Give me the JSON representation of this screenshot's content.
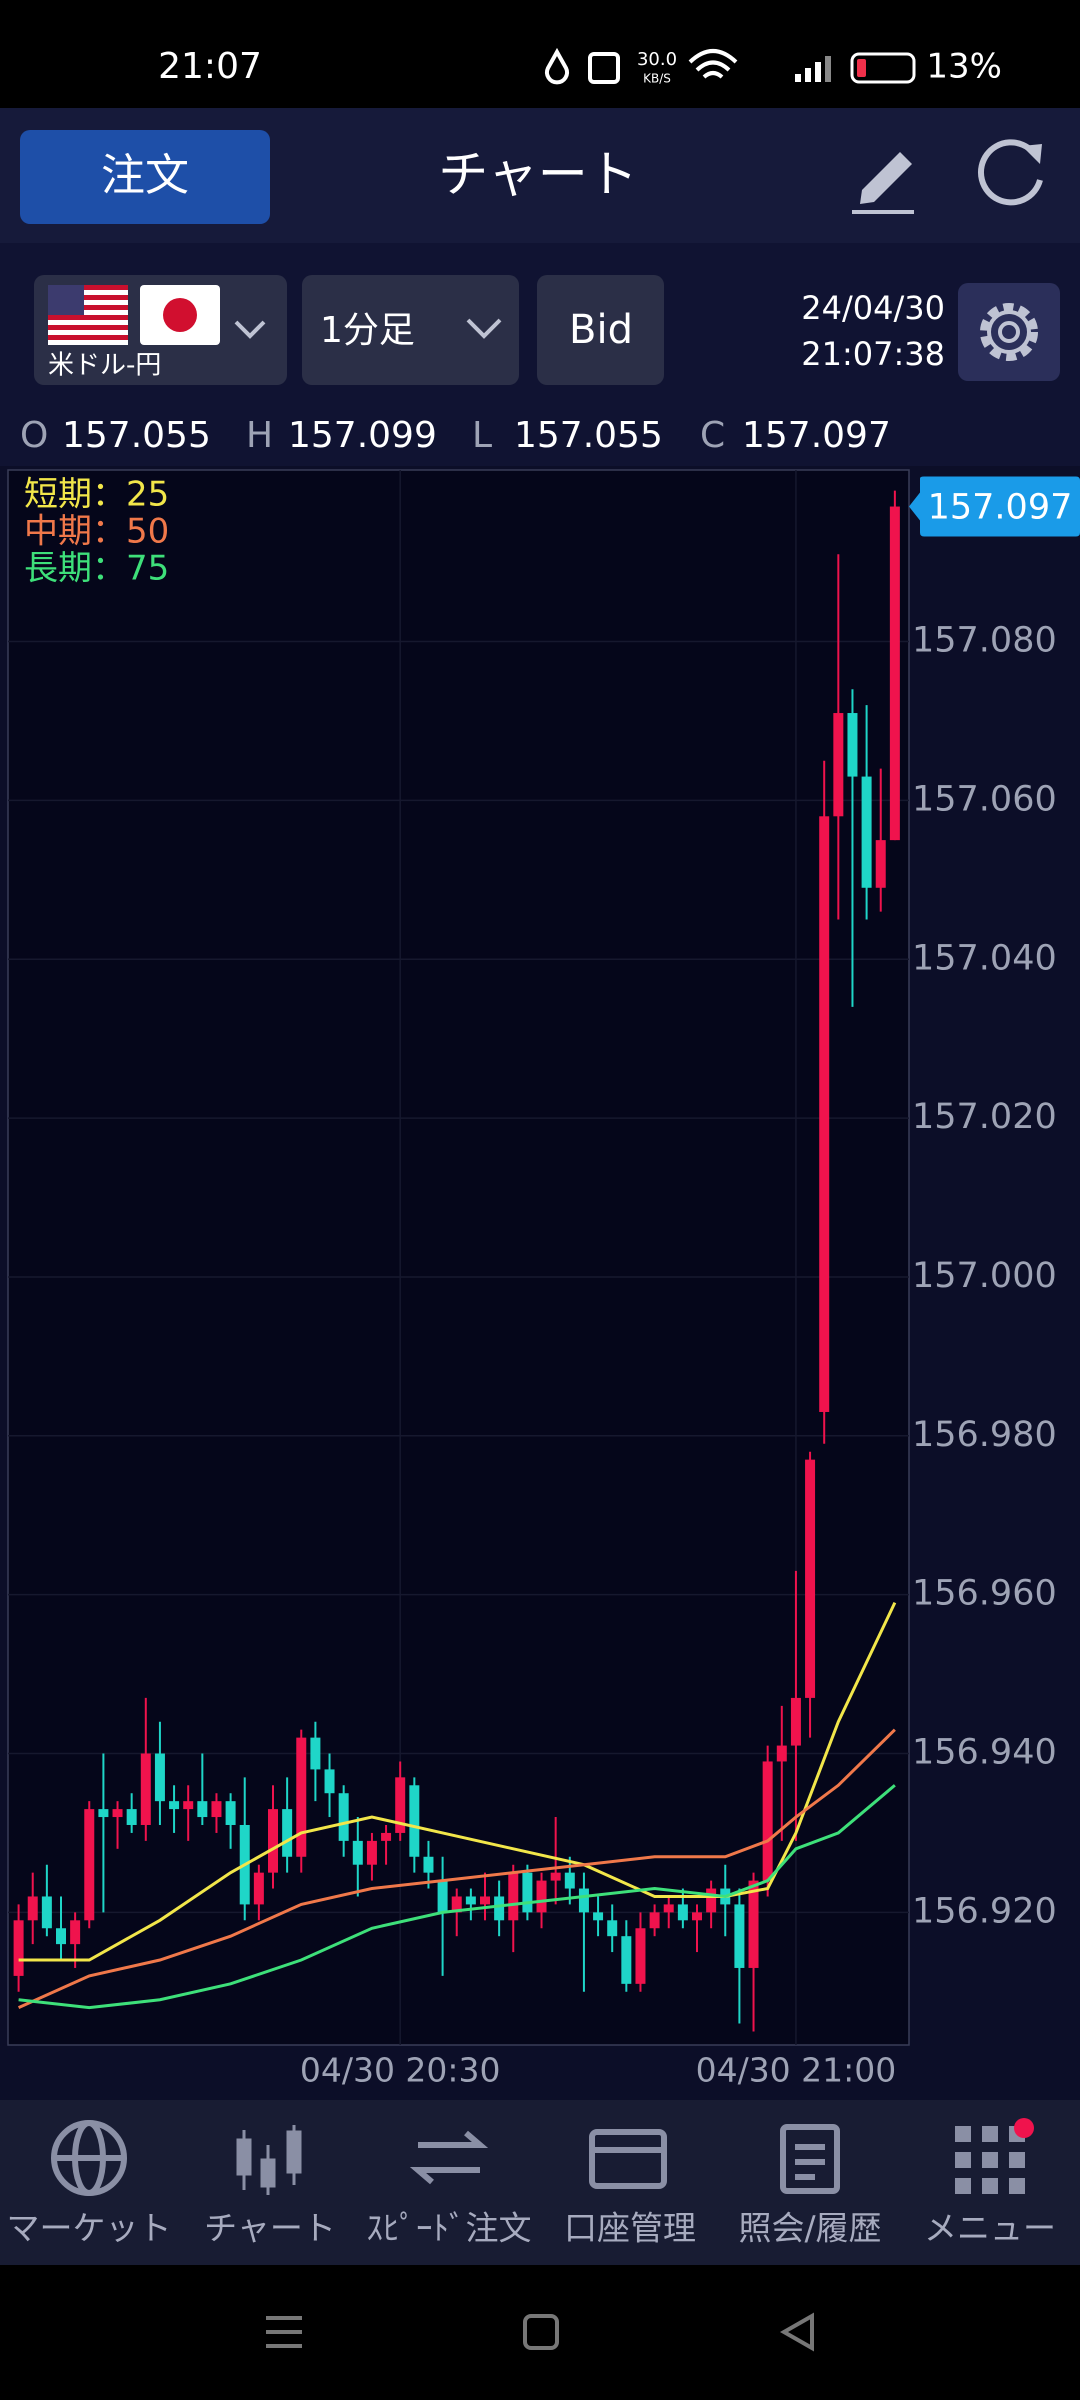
{
  "status_bar": {
    "time": "21:07",
    "net_speed": "30.0",
    "net_unit": "KB/S",
    "battery": "13%"
  },
  "header": {
    "order_button": "注文",
    "title": "チャート"
  },
  "toolbar": {
    "pair": "米ドル-円",
    "timeframe": "1分足",
    "price_type": "Bid",
    "date": "24/04/30",
    "time": "21:07:38"
  },
  "ohlc": [
    {
      "label": "O",
      "value": "157.055"
    },
    {
      "label": "H",
      "value": "157.099"
    },
    {
      "label": "L",
      "value": "157.055"
    },
    {
      "label": "C",
      "value": "157.097"
    }
  ],
  "chart": {
    "type": "candlestick",
    "up_color": "#f0134d",
    "down_color": "#1fd6c8",
    "xlim": [
      -0.75,
      63
    ],
    "xticks": [
      {
        "value": 27,
        "label": "04/30 20:30"
      },
      {
        "value": 55,
        "label": "04/30 21:00"
      }
    ],
    "ylim": [
      156.9033,
      157.1016
    ],
    "yticks": [
      {
        "value": 156.92,
        "label": "156.920"
      },
      {
        "value": 156.94,
        "label": "156.940"
      },
      {
        "value": 156.96,
        "label": "156.960"
      },
      {
        "value": 156.98,
        "label": "156.980"
      },
      {
        "value": 157,
        "label": "157.000"
      },
      {
        "value": 157.02,
        "label": "157.020"
      },
      {
        "value": 157.04,
        "label": "157.040"
      },
      {
        "value": 157.06,
        "label": "157.060"
      },
      {
        "value": 157.08,
        "label": "157.080"
      }
    ],
    "grid": true,
    "last_price": {
      "value": 157.097,
      "label": "157.097"
    },
    "candles": [
      [
        156.912,
        156.921,
        156.91,
        156.919
      ],
      [
        156.919,
        156.925,
        156.916,
        156.922
      ],
      [
        156.922,
        156.926,
        156.917,
        156.918
      ],
      [
        156.918,
        156.922,
        156.914,
        156.916
      ],
      [
        156.916,
        156.92,
        156.913,
        156.919
      ],
      [
        156.919,
        156.934,
        156.918,
        156.933
      ],
      [
        156.933,
        156.94,
        156.92,
        156.932
      ],
      [
        156.932,
        156.934,
        156.928,
        156.933
      ],
      [
        156.933,
        156.935,
        156.93,
        156.931
      ],
      [
        156.931,
        156.947,
        156.929,
        156.94
      ],
      [
        156.94,
        156.944,
        156.931,
        156.934
      ],
      [
        156.934,
        156.936,
        156.93,
        156.933
      ],
      [
        156.933,
        156.936,
        156.929,
        156.934
      ],
      [
        156.934,
        156.94,
        156.931,
        156.932
      ],
      [
        156.932,
        156.935,
        156.93,
        156.934
      ],
      [
        156.934,
        156.935,
        156.928,
        156.931
      ],
      [
        156.931,
        156.937,
        156.919,
        156.921
      ],
      [
        156.921,
        156.926,
        156.919,
        156.925
      ],
      [
        156.925,
        156.936,
        156.923,
        156.933
      ],
      [
        156.933,
        156.937,
        156.925,
        156.927
      ],
      [
        156.927,
        156.943,
        156.925,
        156.942
      ],
      [
        156.942,
        156.944,
        156.934,
        156.938
      ],
      [
        156.938,
        156.94,
        156.932,
        156.935
      ],
      [
        156.935,
        156.936,
        156.927,
        156.929
      ],
      [
        156.929,
        156.932,
        156.922,
        156.926
      ],
      [
        156.926,
        156.93,
        156.924,
        156.929
      ],
      [
        156.929,
        156.931,
        156.926,
        156.93
      ],
      [
        156.93,
        156.939,
        156.929,
        156.937
      ],
      [
        156.936,
        156.937,
        156.925,
        156.927
      ],
      [
        156.927,
        156.929,
        156.923,
        156.925
      ],
      [
        156.924,
        156.927,
        156.912,
        156.92
      ],
      [
        156.92,
        156.923,
        156.917,
        156.922
      ],
      [
        156.922,
        156.923,
        156.919,
        156.921
      ],
      [
        156.921,
        156.925,
        156.919,
        156.922
      ],
      [
        156.922,
        156.924,
        156.917,
        156.919
      ],
      [
        156.919,
        156.926,
        156.915,
        156.925
      ],
      [
        156.925,
        156.926,
        156.919,
        156.92
      ],
      [
        156.92,
        156.925,
        156.918,
        156.924
      ],
      [
        156.924,
        156.932,
        156.921,
        156.925
      ],
      [
        156.925,
        156.927,
        156.921,
        156.923
      ],
      [
        156.923,
        156.925,
        156.91,
        156.92
      ],
      [
        156.92,
        156.922,
        156.917,
        156.919
      ],
      [
        156.919,
        156.921,
        156.915,
        156.917
      ],
      [
        156.917,
        156.919,
        156.91,
        156.911
      ],
      [
        156.911,
        156.92,
        156.91,
        156.918
      ],
      [
        156.918,
        156.921,
        156.917,
        156.92
      ],
      [
        156.92,
        156.922,
        156.918,
        156.921
      ],
      [
        156.921,
        156.923,
        156.918,
        156.919
      ],
      [
        156.919,
        156.921,
        156.915,
        156.92
      ],
      [
        156.92,
        156.924,
        156.918,
        156.923
      ],
      [
        156.923,
        156.926,
        156.917,
        156.921
      ],
      [
        156.921,
        156.923,
        156.906,
        156.913
      ],
      [
        156.913,
        156.925,
        156.905,
        156.924
      ],
      [
        156.924,
        156.941,
        156.922,
        156.939
      ],
      [
        156.939,
        156.946,
        156.929,
        156.941
      ],
      [
        156.941,
        156.963,
        156.929,
        156.947
      ],
      [
        156.947,
        156.978,
        156.942,
        156.977
      ],
      [
        156.983,
        157.065,
        156.979,
        157.058
      ],
      [
        157.058,
        157.091,
        157.045,
        157.071
      ],
      [
        157.071,
        157.074,
        157.034,
        157.063
      ],
      [
        157.063,
        157.072,
        157.045,
        157.049
      ],
      [
        157.049,
        157.064,
        157.046,
        157.055
      ],
      [
        157.055,
        157.099,
        157.055,
        157.097
      ]
    ],
    "series": [
      {
        "name": "短期：25",
        "color": "#f2e64a",
        "x": [
          0,
          5,
          10,
          15,
          20,
          25,
          30,
          35,
          40,
          45,
          50,
          53,
          55,
          58,
          62
        ],
        "values": [
          156.914,
          156.914,
          156.919,
          156.925,
          156.93,
          156.932,
          156.93,
          156.928,
          156.926,
          156.922,
          156.922,
          156.923,
          156.93,
          156.944,
          156.959
        ]
      },
      {
        "name": "中期：50",
        "color": "#f0784a",
        "x": [
          0,
          5,
          10,
          15,
          20,
          25,
          30,
          35,
          40,
          45,
          50,
          53,
          55,
          58,
          62
        ],
        "values": [
          156.908,
          156.912,
          156.914,
          156.917,
          156.921,
          156.923,
          156.924,
          156.925,
          156.926,
          156.927,
          156.927,
          156.929,
          156.932,
          156.936,
          156.943
        ]
      },
      {
        "name": "長期：75",
        "color": "#3ee07a",
        "x": [
          0,
          5,
          10,
          15,
          20,
          25,
          30,
          35,
          40,
          45,
          50,
          53,
          55,
          58,
          62
        ],
        "values": [
          156.909,
          156.908,
          156.909,
          156.911,
          156.914,
          156.918,
          156.92,
          156.921,
          156.922,
          156.923,
          156.922,
          156.924,
          156.928,
          156.93,
          156.936
        ]
      }
    ]
  },
  "nav": [
    "マーケット",
    "チャート",
    "ｽﾋﾟｰﾄﾞ注文",
    "口座管理",
    "照会/履歴",
    "メニュー"
  ]
}
